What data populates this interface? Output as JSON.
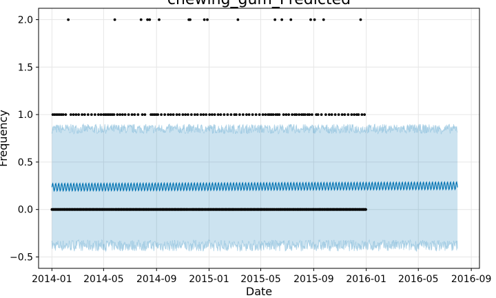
{
  "chart_data": {
    "type": "line",
    "title": "chewing_gum_Predicted",
    "xlabel": "Date",
    "ylabel": "Frequency",
    "x_axis": {
      "kind": "date",
      "range": [
        "2013-12-01",
        "2016-09-20"
      ],
      "ticks": [
        "2014-01-01",
        "2014-05-01",
        "2014-09-01",
        "2015-01-01",
        "2015-05-01",
        "2015-09-01",
        "2016-01-01",
        "2016-05-01",
        "2016-09-01"
      ],
      "tick_labels": [
        "2014-01",
        "2014-05",
        "2014-09",
        "2015-01",
        "2015-05",
        "2015-09",
        "2016-01",
        "2016-05",
        "2016-09"
      ]
    },
    "y_axis": {
      "range": [
        -0.62,
        2.12
      ],
      "ticks": [
        -0.5,
        0.0,
        0.5,
        1.0,
        1.5,
        2.0
      ],
      "tick_labels": [
        "−0.5",
        "0.0",
        "0.5",
        "1.0",
        "1.5",
        "2.0"
      ]
    },
    "grid": true,
    "forecast": {
      "start": "2014-01-01",
      "end": "2016-07-31",
      "trend_start": 0.235,
      "trend_end": 0.25,
      "weekly_amplitude": 0.04,
      "interval_upper": 0.85,
      "interval_lower": -0.38,
      "colors": {
        "line": "#0072b2",
        "interval": "#0072b2"
      }
    },
    "observed": {
      "start": "2014-01-01",
      "end": "2015-12-31",
      "color": "#000000",
      "value_two_dates": [
        "2014-02-08",
        "2014-05-27",
        "2014-07-27",
        "2014-08-11",
        "2014-08-16",
        "2014-09-07",
        "2014-11-15",
        "2014-11-18",
        "2014-12-21",
        "2014-12-28",
        "2015-03-09",
        "2015-06-03",
        "2015-06-19",
        "2015-07-10",
        "2015-08-25",
        "2015-09-03",
        "2015-09-24",
        "2015-12-19"
      ],
      "value_one_dates": [
        "2014-01-03",
        "2014-01-07",
        "2014-01-11",
        "2014-01-15",
        "2014-01-19",
        "2014-01-23",
        "2014-01-27",
        "2014-02-02",
        "2014-02-14",
        "2014-02-20",
        "2014-02-26",
        "2014-03-04",
        "2014-03-12",
        "2014-03-18",
        "2014-03-26",
        "2014-04-03",
        "2014-04-11",
        "2014-04-19",
        "2014-04-25",
        "2014-05-01",
        "2014-05-05",
        "2014-05-09",
        "2014-05-13",
        "2014-05-17",
        "2014-05-21",
        "2014-05-25",
        "2014-06-02",
        "2014-06-08",
        "2014-06-14",
        "2014-06-20",
        "2014-06-28",
        "2014-07-06",
        "2014-07-12",
        "2014-07-20",
        "2014-07-30",
        "2014-08-05",
        "2014-08-19",
        "2014-08-23",
        "2014-08-27",
        "2014-08-31",
        "2014-09-04",
        "2014-09-12",
        "2014-09-20",
        "2014-09-28",
        "2014-10-04",
        "2014-10-10",
        "2014-10-18",
        "2014-10-24",
        "2014-11-01",
        "2014-11-07",
        "2014-11-13",
        "2014-11-21",
        "2014-11-29",
        "2014-12-05",
        "2014-12-13",
        "2014-12-19",
        "2014-12-25",
        "2015-01-02",
        "2015-01-08",
        "2015-01-14",
        "2015-01-22",
        "2015-01-28",
        "2015-02-05",
        "2015-02-13",
        "2015-02-21",
        "2015-03-01",
        "2015-03-05",
        "2015-03-13",
        "2015-03-21",
        "2015-03-29",
        "2015-04-04",
        "2015-04-12",
        "2015-04-20",
        "2015-04-28",
        "2015-05-06",
        "2015-05-12",
        "2015-05-18",
        "2015-05-22",
        "2015-05-26",
        "2015-05-30",
        "2015-06-05",
        "2015-06-09",
        "2015-06-13",
        "2015-06-23",
        "2015-06-29",
        "2015-07-05",
        "2015-07-13",
        "2015-07-19",
        "2015-07-23",
        "2015-07-29",
        "2015-08-04",
        "2015-08-08",
        "2015-08-12",
        "2015-08-18",
        "2015-08-22",
        "2015-08-28",
        "2015-09-07",
        "2015-09-11",
        "2015-09-19",
        "2015-09-29",
        "2015-10-07",
        "2015-10-13",
        "2015-10-21",
        "2015-10-29",
        "2015-11-06",
        "2015-11-12",
        "2015-11-20",
        "2015-11-28",
        "2015-12-04",
        "2015-12-10",
        "2015-12-14",
        "2015-12-22",
        "2015-12-28"
      ]
    }
  }
}
